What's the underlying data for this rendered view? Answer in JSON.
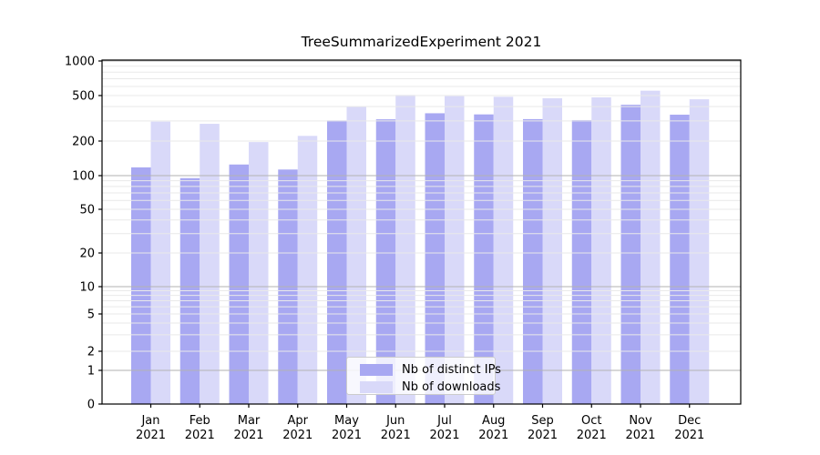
{
  "chart_data": {
    "type": "bar",
    "title": "TreeSummarizedExperiment 2021",
    "year_label": "2021",
    "categories": [
      "Jan",
      "Feb",
      "Mar",
      "Apr",
      "May",
      "Jun",
      "Jul",
      "Aug",
      "Sep",
      "Oct",
      "Nov",
      "Dec"
    ],
    "series": [
      {
        "name": "Nb of distinct IPs",
        "color": "#a8a8f2",
        "values": [
          118,
          95,
          125,
          113,
          303,
          310,
          350,
          342,
          311,
          305,
          415,
          340
        ]
      },
      {
        "name": "Nb of downloads",
        "color": "#d9d9f9",
        "values": [
          296,
          283,
          196,
          222,
          398,
          506,
          494,
          488,
          474,
          482,
          551,
          464
        ]
      }
    ],
    "yscale": "symlog",
    "ylim": [
      0,
      1000
    ],
    "yticks": [
      0,
      1,
      2,
      5,
      10,
      20,
      50,
      100,
      200,
      500,
      1000
    ],
    "grid": "both",
    "legend_position": "lower-center",
    "colors": {
      "major_grid": "#b2b2b2",
      "minor_grid": "#e9e9e9",
      "axis": "#000000",
      "background": "#ffffff"
    }
  }
}
